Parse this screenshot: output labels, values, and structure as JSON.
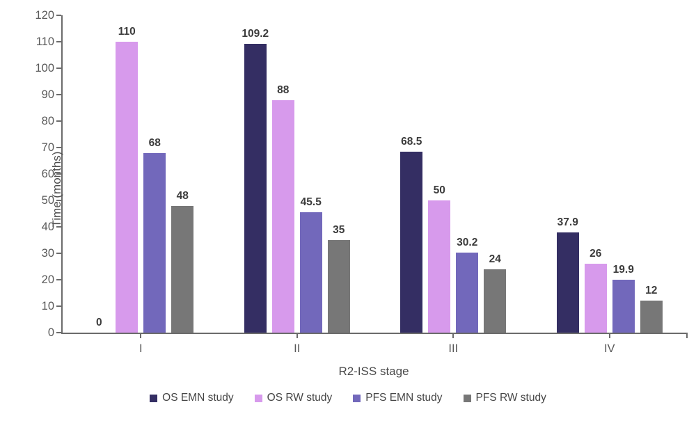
{
  "chart_data": {
    "type": "bar",
    "title": "",
    "xlabel": "R2-ISS stage",
    "ylabel": "Time (months)",
    "ylim": [
      0,
      120
    ],
    "ytick_step": 10,
    "grid": false,
    "legend_position": "bottom",
    "value_labels": true,
    "categories": [
      "I",
      "II",
      "III",
      "IV"
    ],
    "series": [
      {
        "name": "OS EMN study",
        "color": "#342e63",
        "values": [
          0,
          109.2,
          68.5,
          37.9
        ]
      },
      {
        "name": "OS RW study",
        "color": "#d79aec",
        "values": [
          110,
          88,
          50,
          26
        ]
      },
      {
        "name": "PFS EMN study",
        "color": "#7268bb",
        "values": [
          68,
          45.5,
          30.2,
          19.9
        ]
      },
      {
        "name": "PFS RW study",
        "color": "#777777",
        "values": [
          48,
          35,
          24,
          12
        ]
      }
    ],
    "style": {
      "axis_line_color": "#6b6b6b",
      "tick_label_color": "#595959",
      "value_label_color": "#3b3b3b",
      "axis_title_color": "#4a4a4a",
      "legend_text_color": "#454545",
      "background": "#ffffff"
    }
  }
}
